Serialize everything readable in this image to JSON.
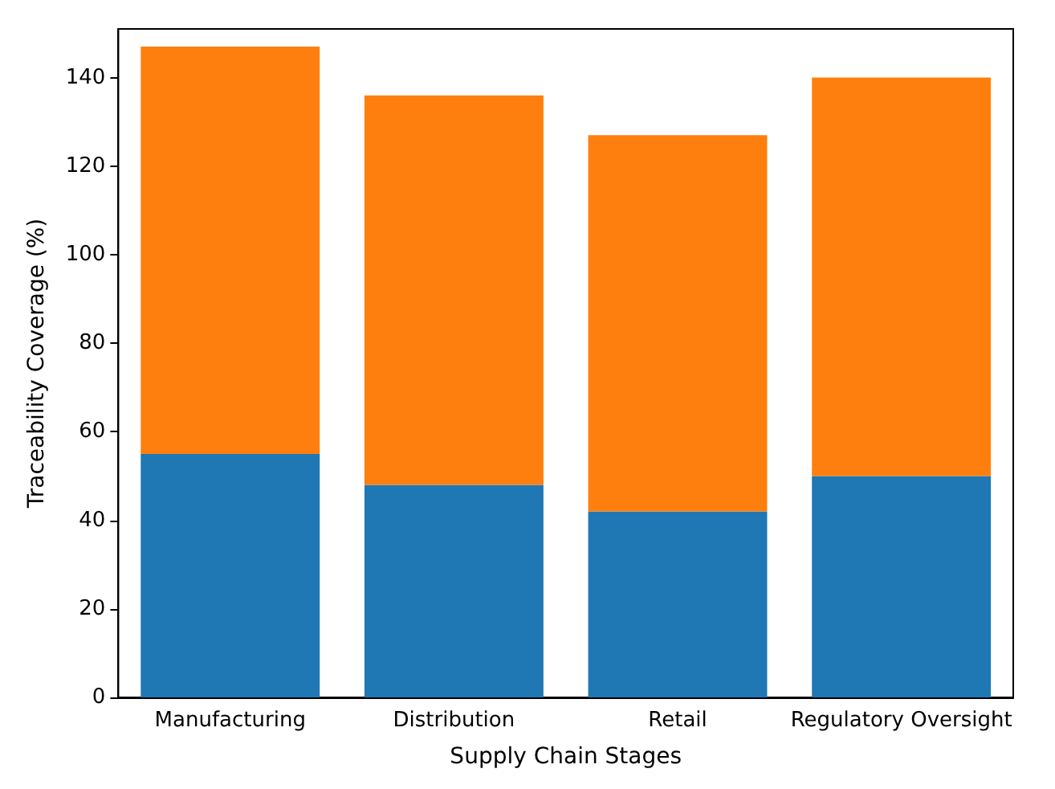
{
  "chart_data": {
    "type": "bar",
    "stacked": true,
    "xlabel": "Supply Chain Stages",
    "ylabel": "Traceability Coverage (%)",
    "categories": [
      "Manufacturing",
      "Distribution",
      "Retail",
      "Regulatory Oversight"
    ],
    "series": [
      {
        "color": "#1f77b4",
        "values": [
          55,
          48,
          42,
          50
        ]
      },
      {
        "color": "#ff7f0e",
        "values": [
          92,
          88,
          85,
          90
        ]
      }
    ],
    "ylim": [
      0,
      151
    ],
    "yticks": [
      0,
      20,
      40,
      60,
      80,
      100,
      120,
      140
    ],
    "grid": false
  }
}
